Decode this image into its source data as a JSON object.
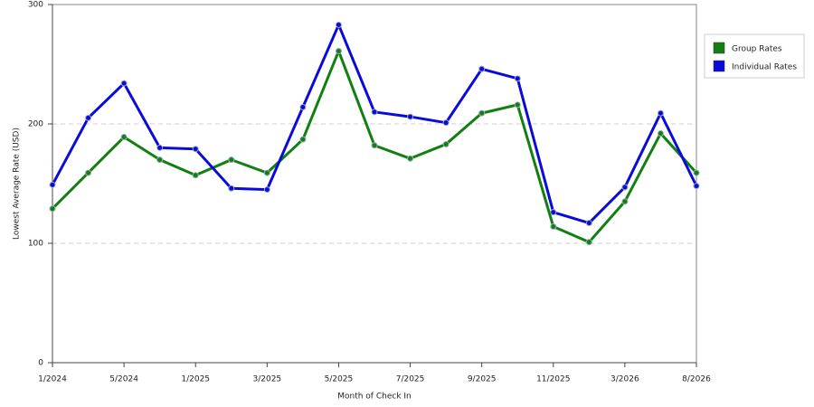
{
  "chart_data": {
    "type": "line",
    "x_label": "Month of Check In",
    "y_label": "Lowest Average Rate (USD)",
    "categories": [
      "1/2024",
      null,
      "5/2024",
      null,
      "1/2025",
      null,
      "3/2025",
      null,
      "5/2025",
      null,
      "7/2025",
      null,
      "9/2025",
      null,
      "11/2025",
      null,
      "3/2026",
      null,
      "8/2026"
    ],
    "series": [
      {
        "name": "Group Rates",
        "color": "#118011",
        "values": [
          129,
          159,
          189,
          170,
          157,
          170,
          159,
          187,
          261,
          182,
          171,
          183,
          209,
          216,
          114,
          101,
          135,
          192,
          159
        ]
      },
      {
        "name": "Individual Rates",
        "color": "#0b0bd9",
        "values": [
          149,
          205,
          234,
          180,
          179,
          146,
          145,
          214,
          283,
          210,
          206,
          201,
          246,
          238,
          126,
          117,
          147,
          209,
          148
        ]
      }
    ],
    "ylim": [
      0,
      300
    ],
    "yticks": [
      0,
      100,
      200,
      300
    ],
    "grid": true,
    "legend": "top-right"
  }
}
